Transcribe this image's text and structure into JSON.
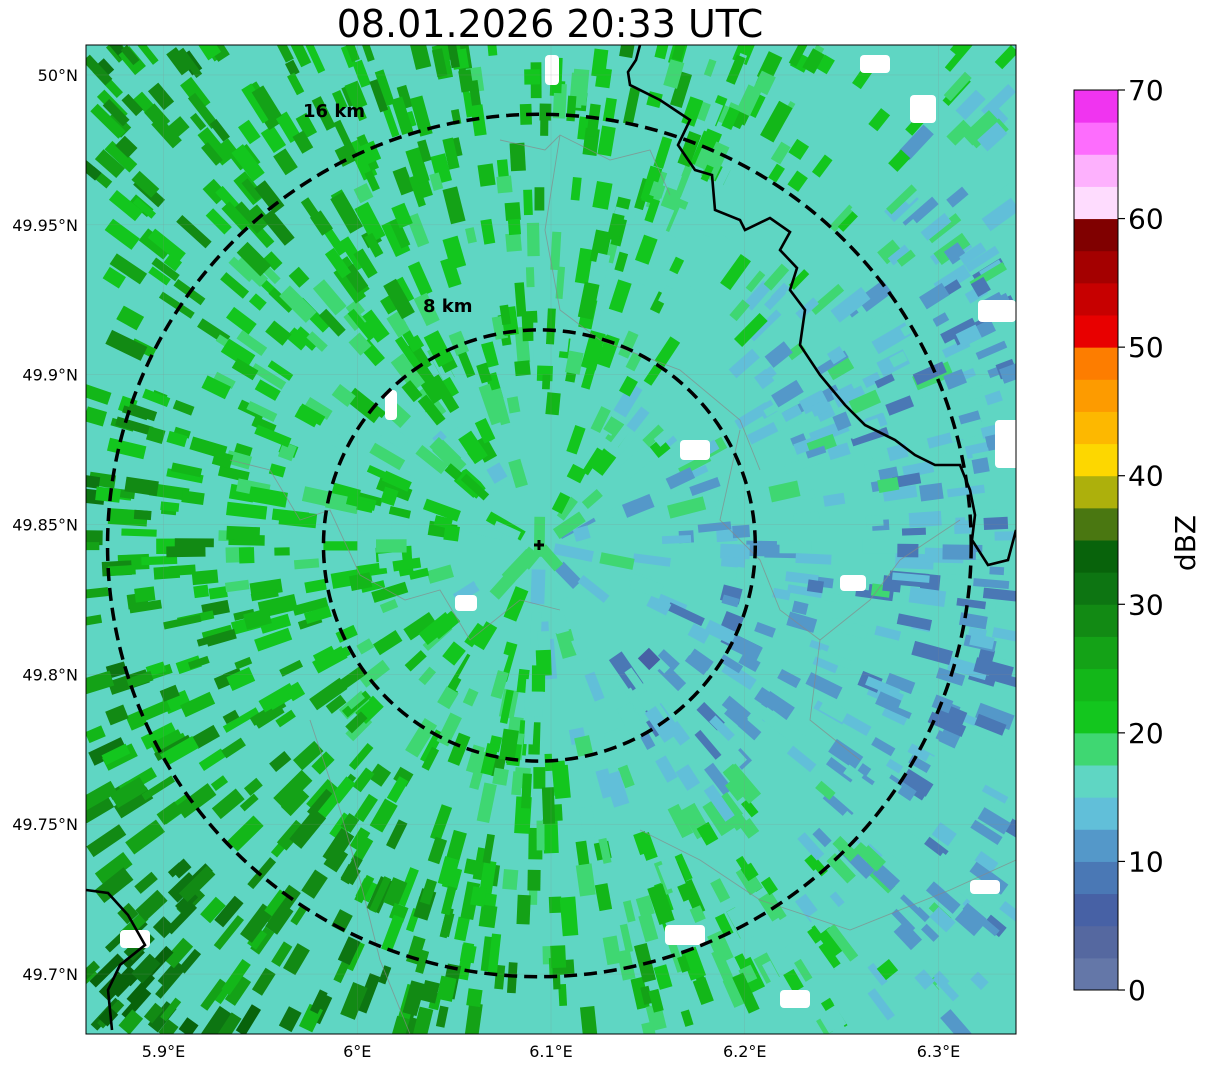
{
  "title": "08.01.2026 20:33 UTC",
  "map": {
    "lon_range": [
      5.86,
      6.34
    ],
    "lat_range": [
      49.68,
      50.01
    ],
    "center": {
      "lon": 6.094,
      "lat": 49.843
    },
    "lon_ticks": [
      {
        "value": 5.9,
        "label": "5.9°E"
      },
      {
        "value": 6.0,
        "label": "6°E"
      },
      {
        "value": 6.1,
        "label": "6.1°E"
      },
      {
        "value": 6.2,
        "label": "6.2°E"
      },
      {
        "value": 6.3,
        "label": "6.3°E"
      }
    ],
    "lat_ticks": [
      {
        "value": 50.0,
        "label": "50°N"
      },
      {
        "value": 49.95,
        "label": "49.95°N"
      },
      {
        "value": 49.9,
        "label": "49.9°N"
      },
      {
        "value": 49.85,
        "label": "49.85°N"
      },
      {
        "value": 49.8,
        "label": "49.8°N"
      },
      {
        "value": 49.75,
        "label": "49.75°N"
      },
      {
        "value": 49.7,
        "label": "49.7°N"
      }
    ],
    "rings": [
      {
        "radius_km": 8,
        "label": "8 km"
      },
      {
        "radius_km": 16,
        "label": "16 km"
      }
    ]
  },
  "colorbar": {
    "title": "dBZ",
    "min": 0,
    "max": 70,
    "step": 2.5,
    "tick_labels": [
      "0",
      "10",
      "20",
      "30",
      "40",
      "50",
      "60",
      "70"
    ],
    "tick_values": [
      0,
      10,
      20,
      30,
      40,
      50,
      60,
      70
    ],
    "colors": [
      "#6477a8",
      "#5568a0",
      "#4761a5",
      "#4a78b5",
      "#5498c9",
      "#61bfd9",
      "#5fd6c3",
      "#3fd772",
      "#13c61e",
      "#13b719",
      "#14a217",
      "#128a14",
      "#0d7512",
      "#08630b",
      "#4a7711",
      "#adb00c",
      "#fdd700",
      "#fdb800",
      "#fd9b00",
      "#fd7d00",
      "#e80000",
      "#c70000",
      "#a40000",
      "#800000",
      "#fedcfe",
      "#fdb1fd",
      "#fd6dfd",
      "#f034f0"
    ]
  }
}
